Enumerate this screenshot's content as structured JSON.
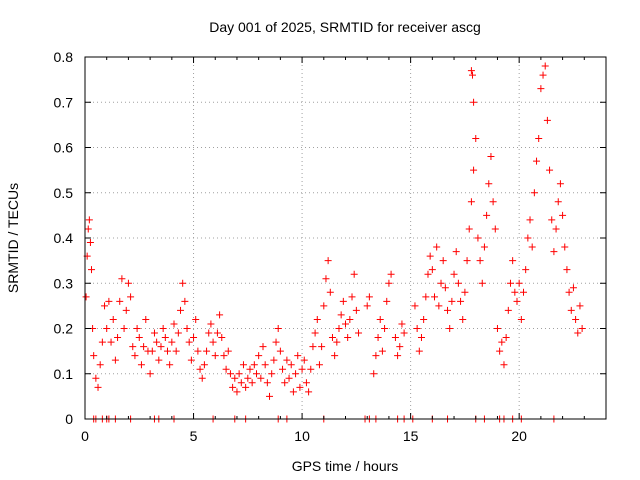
{
  "chart_data": {
    "type": "scatter",
    "title": "Day 001 of 2025, SRMTID for receiver ascg",
    "xlabel": "GPS time / hours",
    "ylabel": "SRMTID / TECUs",
    "xlim": [
      0,
      24
    ],
    "ylim": [
      0,
      0.8
    ],
    "x_ticks": [
      0,
      5,
      10,
      15,
      20
    ],
    "y_ticks": [
      0,
      0.1,
      0.2,
      0.3,
      0.4,
      0.5,
      0.6,
      0.7,
      0.8
    ],
    "x_tick_labels": [
      "0",
      "5",
      "10",
      "15",
      "20"
    ],
    "y_tick_labels": [
      "0",
      "0.1",
      "0.2",
      "0.3",
      "0.4",
      "0.5",
      "0.6",
      "0.7",
      "0.8"
    ],
    "grid": true,
    "marker": "+",
    "color": "#ff0000",
    "series": [
      {
        "name": "SRMTID",
        "points": [
          [
            0.05,
            0.27
          ],
          [
            0.1,
            0.36
          ],
          [
            0.15,
            0.42
          ],
          [
            0.2,
            0.44
          ],
          [
            0.25,
            0.39
          ],
          [
            0.3,
            0.33
          ],
          [
            0.35,
            0.2
          ],
          [
            0.4,
            0.14
          ],
          [
            0.5,
            0.09
          ],
          [
            0.6,
            0.07
          ],
          [
            0.7,
            0.12
          ],
          [
            0.8,
            0.17
          ],
          [
            0.9,
            0.25
          ],
          [
            1.0,
            0.2
          ],
          [
            1.1,
            0.26
          ],
          [
            1.2,
            0.17
          ],
          [
            1.3,
            0.22
          ],
          [
            1.4,
            0.13
          ],
          [
            1.5,
            0.18
          ],
          [
            1.6,
            0.26
          ],
          [
            1.7,
            0.31
          ],
          [
            1.8,
            0.2
          ],
          [
            1.9,
            0.24
          ],
          [
            2.0,
            0.3
          ],
          [
            2.1,
            0.27
          ],
          [
            2.2,
            0.16
          ],
          [
            2.3,
            0.14
          ],
          [
            2.4,
            0.2
          ],
          [
            2.5,
            0.18
          ],
          [
            2.6,
            0.12
          ],
          [
            2.7,
            0.16
          ],
          [
            2.8,
            0.22
          ],
          [
            2.9,
            0.15
          ],
          [
            3.0,
            0.1
          ],
          [
            3.1,
            0.15
          ],
          [
            3.2,
            0.19
          ],
          [
            3.3,
            0.17
          ],
          [
            3.4,
            0.13
          ],
          [
            3.5,
            0.16
          ],
          [
            3.6,
            0.2
          ],
          [
            3.7,
            0.18
          ],
          [
            3.8,
            0.15
          ],
          [
            3.9,
            0.12
          ],
          [
            4.0,
            0.17
          ],
          [
            4.1,
            0.21
          ],
          [
            4.2,
            0.15
          ],
          [
            4.3,
            0.19
          ],
          [
            4.4,
            0.24
          ],
          [
            4.5,
            0.3
          ],
          [
            4.6,
            0.26
          ],
          [
            4.7,
            0.2
          ],
          [
            4.8,
            0.17
          ],
          [
            4.9,
            0.13
          ],
          [
            5.0,
            0.18
          ],
          [
            5.1,
            0.22
          ],
          [
            5.2,
            0.15
          ],
          [
            5.3,
            0.11
          ],
          [
            5.4,
            0.09
          ],
          [
            5.5,
            0.12
          ],
          [
            5.6,
            0.15
          ],
          [
            5.7,
            0.19
          ],
          [
            5.8,
            0.21
          ],
          [
            5.9,
            0.17
          ],
          [
            6.0,
            0.14
          ],
          [
            6.1,
            0.19
          ],
          [
            6.2,
            0.23
          ],
          [
            6.3,
            0.18
          ],
          [
            6.4,
            0.14
          ],
          [
            6.5,
            0.11
          ],
          [
            6.6,
            0.15
          ],
          [
            6.7,
            0.1
          ],
          [
            6.8,
            0.07
          ],
          [
            6.9,
            0.09
          ],
          [
            7.0,
            0.06
          ],
          [
            7.1,
            0.1
          ],
          [
            7.2,
            0.08
          ],
          [
            7.3,
            0.12
          ],
          [
            7.4,
            0.07
          ],
          [
            7.5,
            0.09
          ],
          [
            7.6,
            0.11
          ],
          [
            7.7,
            0.08
          ],
          [
            7.8,
            0.12
          ],
          [
            7.9,
            0.1
          ],
          [
            8.0,
            0.14
          ],
          [
            8.1,
            0.09
          ],
          [
            8.2,
            0.16
          ],
          [
            8.3,
            0.12
          ],
          [
            8.4,
            0.08
          ],
          [
            8.5,
            0.05
          ],
          [
            8.6,
            0.1
          ],
          [
            8.7,
            0.13
          ],
          [
            8.8,
            0.17
          ],
          [
            8.9,
            0.2
          ],
          [
            9.0,
            0.15
          ],
          [
            9.1,
            0.11
          ],
          [
            9.2,
            0.08
          ],
          [
            9.3,
            0.13
          ],
          [
            9.4,
            0.09
          ],
          [
            9.5,
            0.12
          ],
          [
            9.6,
            0.06
          ],
          [
            9.7,
            0.1
          ],
          [
            9.8,
            0.14
          ],
          [
            9.9,
            0.07
          ],
          [
            10.0,
            0.11
          ],
          [
            10.1,
            0.13
          ],
          [
            10.2,
            0.08
          ],
          [
            10.3,
            0.06
          ],
          [
            10.4,
            0.11
          ],
          [
            10.5,
            0.16
          ],
          [
            10.6,
            0.19
          ],
          [
            10.7,
            0.22
          ],
          [
            10.8,
            0.12
          ],
          [
            10.9,
            0.16
          ],
          [
            11.0,
            0.25
          ],
          [
            11.1,
            0.31
          ],
          [
            11.2,
            0.35
          ],
          [
            11.3,
            0.28
          ],
          [
            11.4,
            0.18
          ],
          [
            11.5,
            0.14
          ],
          [
            11.6,
            0.17
          ],
          [
            11.7,
            0.2
          ],
          [
            11.8,
            0.23
          ],
          [
            11.9,
            0.26
          ],
          [
            12.0,
            0.21
          ],
          [
            12.1,
            0.18
          ],
          [
            12.2,
            0.22
          ],
          [
            12.3,
            0.27
          ],
          [
            12.4,
            0.32
          ],
          [
            12.5,
            0.24
          ],
          [
            12.6,
            0.19
          ],
          [
            13.0,
            0.25
          ],
          [
            13.1,
            0.27
          ],
          [
            13.3,
            0.1
          ],
          [
            13.4,
            0.14
          ],
          [
            13.5,
            0.18
          ],
          [
            13.6,
            0.22
          ],
          [
            13.7,
            0.15
          ],
          [
            13.8,
            0.2
          ],
          [
            13.9,
            0.26
          ],
          [
            14.0,
            0.3
          ],
          [
            14.1,
            0.32
          ],
          [
            14.3,
            0.18
          ],
          [
            14.4,
            0.14
          ],
          [
            14.5,
            0.16
          ],
          [
            14.6,
            0.21
          ],
          [
            14.7,
            0.19
          ],
          [
            15.2,
            0.25
          ],
          [
            15.3,
            0.2
          ],
          [
            15.4,
            0.15
          ],
          [
            15.5,
            0.18
          ],
          [
            15.6,
            0.22
          ],
          [
            15.7,
            0.27
          ],
          [
            15.8,
            0.32
          ],
          [
            15.9,
            0.36
          ],
          [
            16.0,
            0.33
          ],
          [
            16.1,
            0.27
          ],
          [
            16.2,
            0.38
          ],
          [
            16.3,
            0.25
          ],
          [
            16.4,
            0.3
          ],
          [
            16.5,
            0.35
          ],
          [
            16.6,
            0.29
          ],
          [
            16.7,
            0.24
          ],
          [
            16.8,
            0.2
          ],
          [
            16.9,
            0.26
          ],
          [
            17.0,
            0.32
          ],
          [
            17.1,
            0.37
          ],
          [
            17.2,
            0.3
          ],
          [
            17.3,
            0.26
          ],
          [
            17.4,
            0.22
          ],
          [
            17.5,
            0.28
          ],
          [
            17.6,
            0.35
          ],
          [
            17.7,
            0.42
          ],
          [
            17.8,
            0.48
          ],
          [
            17.9,
            0.55
          ],
          [
            18.0,
            0.62
          ],
          [
            17.8,
            0.77
          ],
          [
            17.85,
            0.76
          ],
          [
            17.9,
            0.7
          ],
          [
            18.1,
            0.4
          ],
          [
            18.2,
            0.35
          ],
          [
            18.3,
            0.3
          ],
          [
            18.4,
            0.38
          ],
          [
            18.5,
            0.45
          ],
          [
            18.6,
            0.52
          ],
          [
            18.7,
            0.58
          ],
          [
            18.8,
            0.48
          ],
          [
            18.9,
            0.42
          ],
          [
            19.0,
            0.2
          ],
          [
            19.1,
            0.15
          ],
          [
            19.2,
            0.17
          ],
          [
            19.3,
            0.12
          ],
          [
            19.4,
            0.18
          ],
          [
            19.5,
            0.24
          ],
          [
            19.6,
            0.3
          ],
          [
            19.7,
            0.35
          ],
          [
            19.8,
            0.28
          ],
          [
            19.9,
            0.26
          ],
          [
            20.0,
            0.3
          ],
          [
            20.1,
            0.22
          ],
          [
            20.2,
            0.28
          ],
          [
            20.3,
            0.33
          ],
          [
            20.4,
            0.4
          ],
          [
            20.5,
            0.44
          ],
          [
            20.6,
            0.38
          ],
          [
            20.7,
            0.5
          ],
          [
            20.8,
            0.57
          ],
          [
            20.9,
            0.62
          ],
          [
            21.0,
            0.73
          ],
          [
            21.1,
            0.76
          ],
          [
            21.2,
            0.78
          ],
          [
            21.3,
            0.66
          ],
          [
            21.4,
            0.55
          ],
          [
            21.5,
            0.44
          ],
          [
            21.6,
            0.37
          ],
          [
            21.7,
            0.42
          ],
          [
            21.8,
            0.48
          ],
          [
            21.9,
            0.52
          ],
          [
            22.0,
            0.45
          ],
          [
            22.1,
            0.38
          ],
          [
            22.2,
            0.33
          ],
          [
            22.3,
            0.28
          ],
          [
            22.4,
            0.24
          ],
          [
            22.5,
            0.29
          ],
          [
            22.6,
            0.22
          ],
          [
            22.7,
            0.19
          ],
          [
            22.8,
            0.25
          ],
          [
            22.9,
            0.2
          ],
          [
            0.4,
            0
          ],
          [
            0.5,
            0
          ],
          [
            0.8,
            0
          ],
          [
            1.0,
            0
          ],
          [
            1.1,
            0
          ],
          [
            1.4,
            0
          ],
          [
            2.1,
            0
          ],
          [
            3.2,
            0
          ],
          [
            3.4,
            0
          ],
          [
            4.1,
            0
          ],
          [
            5.9,
            0
          ],
          [
            6.9,
            0
          ],
          [
            7.4,
            0
          ],
          [
            8.9,
            0
          ],
          [
            9.3,
            0
          ],
          [
            11.0,
            0
          ],
          [
            12.9,
            0
          ],
          [
            13.1,
            0
          ],
          [
            13.4,
            0
          ],
          [
            14.4,
            0
          ],
          [
            14.7,
            0
          ],
          [
            15.1,
            0
          ],
          [
            16.0,
            0
          ],
          [
            16.7,
            0
          ],
          [
            18.0,
            0
          ],
          [
            18.4,
            0
          ],
          [
            19.1,
            0
          ],
          [
            19.3,
            0
          ],
          [
            19.7,
            0
          ],
          [
            20.1,
            0
          ],
          [
            21.6,
            0
          ]
        ]
      }
    ]
  }
}
